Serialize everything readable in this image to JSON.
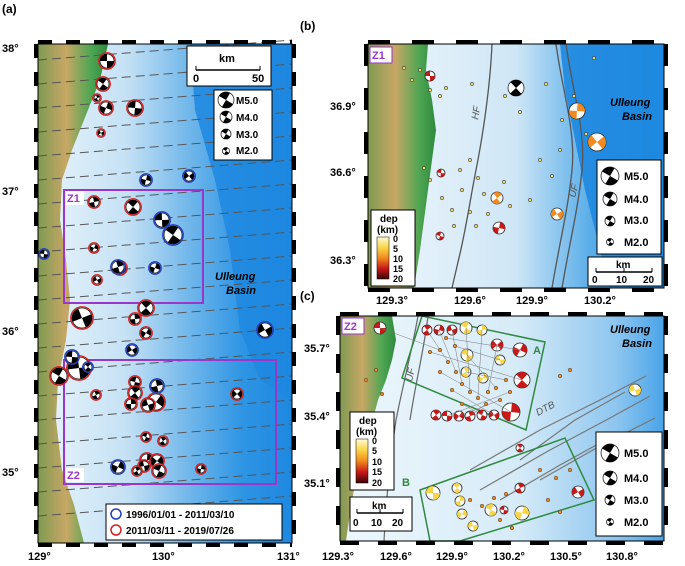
{
  "panels": {
    "a": {
      "tag": "(a)",
      "lat_labels": [
        "38°",
        "37°",
        "36°",
        "35°"
      ],
      "lon_labels": [
        "129°",
        "130°",
        "131°"
      ],
      "scale_title": "km",
      "scale_ticks": [
        "0",
        "50"
      ],
      "mag_legend": [
        "M5.0",
        "M4.0",
        "M3.0",
        "M2.0"
      ],
      "basin_line1": "Ulleung",
      "basin_line2": "Basin",
      "zone1": "Z1",
      "zone2": "Z2",
      "period_legend": [
        "1996/01/01 - 2011/03/10",
        "2011/03/11 - 2019/07/26"
      ],
      "colors": {
        "early": "#1f3fbf",
        "late": "#d42020",
        "zone": "#9a36c8"
      }
    },
    "b": {
      "tag": "(b)",
      "zone": "Z1",
      "lat_labels": [
        "36.9°",
        "36.6°",
        "36.3°"
      ],
      "lon_labels": [
        "129.3°",
        "129.6°",
        "129.9°",
        "130.2°"
      ],
      "fault_hf": "HF",
      "fault_uf": "UF",
      "basin_line1": "Ulleung",
      "basin_line2": "Basin",
      "depth_title1": "dep",
      "depth_title2": "(km)",
      "depth_ticks": [
        "0",
        "5",
        "10",
        "15",
        "20"
      ],
      "mag_legend": [
        "M5.0",
        "M4.0",
        "M3.0",
        "M2.0"
      ],
      "scale_title": "km",
      "scale_ticks": [
        "0",
        "10",
        "20"
      ]
    },
    "c": {
      "tag": "(c)",
      "zone": "Z2",
      "lat_labels": [
        "35.7°",
        "35.4°",
        "35.1°"
      ],
      "lon_labels": [
        "129.3°",
        "129.6°",
        "129.9°",
        "130.2°",
        "130.5°",
        "130.8°"
      ],
      "cluster_a": "A",
      "cluster_b": "B",
      "fault_uf": "UF",
      "fault_dtb": "DTB",
      "basin_line1": "Ulleung",
      "basin_line2": "Basin",
      "depth_title1": "dep",
      "depth_title2": "(km)",
      "depth_ticks": [
        "0",
        "5",
        "10",
        "15",
        "20"
      ],
      "mag_legend": [
        "M5.0",
        "M4.0",
        "M3.0",
        "M2.0"
      ],
      "scale_title": "km",
      "scale_ticks": [
        "0",
        "10",
        "20"
      ]
    }
  }
}
